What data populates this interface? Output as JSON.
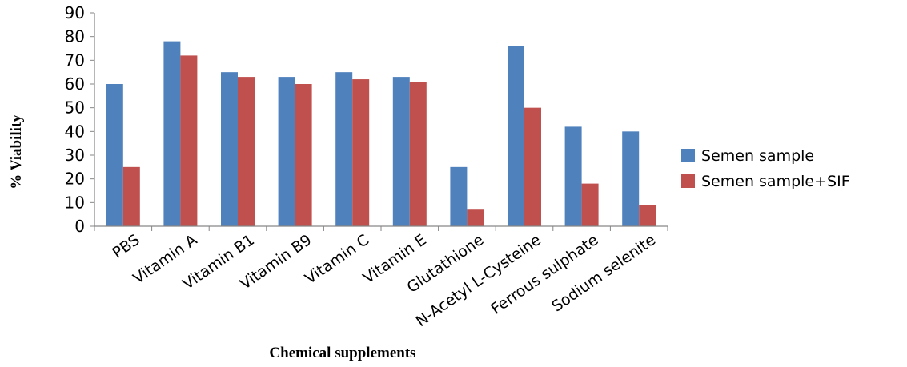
{
  "chart_data": {
    "type": "bar",
    "title": "",
    "xlabel": "Chemical supplements",
    "ylabel": "% Viability",
    "ylim": [
      0,
      90
    ],
    "yticks": [
      0,
      10,
      20,
      30,
      40,
      50,
      60,
      70,
      80,
      90
    ],
    "grid": false,
    "legend_position": "right",
    "categories": [
      "PBS",
      "Vitamin A",
      "Vitamin B1",
      "Vitamin B9",
      "Vitamin C",
      "Vitamin E",
      "Glutathione",
      "N-Acetyl L-Cysteine",
      "Ferrous sulphate",
      "Sodium selenite"
    ],
    "series": [
      {
        "name": "Semen sample",
        "color": "#4F81BD",
        "values": [
          60,
          78,
          65,
          63,
          65,
          63,
          25,
          76,
          42,
          40
        ]
      },
      {
        "name": "Semen sample+SIF",
        "color": "#C0504D",
        "values": [
          25,
          72,
          63,
          60,
          62,
          61,
          7,
          50,
          18,
          9
        ]
      }
    ]
  }
}
